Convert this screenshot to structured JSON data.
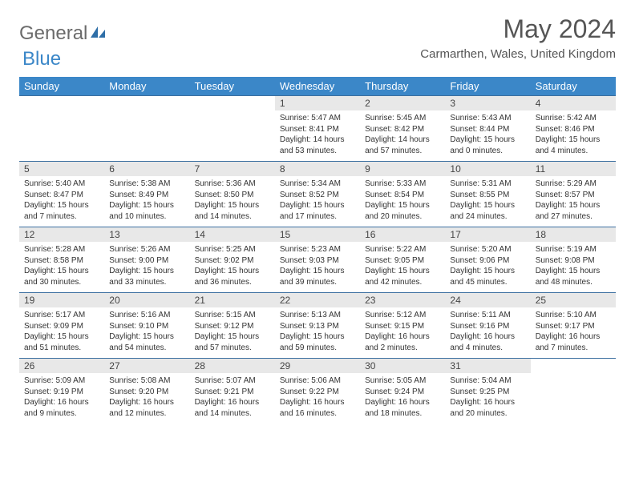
{
  "logo": {
    "word1": "General",
    "word2": "Blue"
  },
  "title": "May 2024",
  "location": "Carmarthen, Wales, United Kingdom",
  "colors": {
    "header_bg": "#3b87c8",
    "header_text": "#ffffff",
    "row_border": "#3b6fa0",
    "daynum_bg": "#e8e8e8",
    "logo_gray": "#6b6b6b",
    "logo_blue": "#3b87c8"
  },
  "layout": {
    "first_weekday_index": 3,
    "num_days": 31,
    "cols": 7
  },
  "weekdays": [
    "Sunday",
    "Monday",
    "Tuesday",
    "Wednesday",
    "Thursday",
    "Friday",
    "Saturday"
  ],
  "days": [
    {
      "n": 1,
      "sunrise": "5:47 AM",
      "sunset": "8:41 PM",
      "daylight": "14 hours and 53 minutes."
    },
    {
      "n": 2,
      "sunrise": "5:45 AM",
      "sunset": "8:42 PM",
      "daylight": "14 hours and 57 minutes."
    },
    {
      "n": 3,
      "sunrise": "5:43 AM",
      "sunset": "8:44 PM",
      "daylight": "15 hours and 0 minutes."
    },
    {
      "n": 4,
      "sunrise": "5:42 AM",
      "sunset": "8:46 PM",
      "daylight": "15 hours and 4 minutes."
    },
    {
      "n": 5,
      "sunrise": "5:40 AM",
      "sunset": "8:47 PM",
      "daylight": "15 hours and 7 minutes."
    },
    {
      "n": 6,
      "sunrise": "5:38 AM",
      "sunset": "8:49 PM",
      "daylight": "15 hours and 10 minutes."
    },
    {
      "n": 7,
      "sunrise": "5:36 AM",
      "sunset": "8:50 PM",
      "daylight": "15 hours and 14 minutes."
    },
    {
      "n": 8,
      "sunrise": "5:34 AM",
      "sunset": "8:52 PM",
      "daylight": "15 hours and 17 minutes."
    },
    {
      "n": 9,
      "sunrise": "5:33 AM",
      "sunset": "8:54 PM",
      "daylight": "15 hours and 20 minutes."
    },
    {
      "n": 10,
      "sunrise": "5:31 AM",
      "sunset": "8:55 PM",
      "daylight": "15 hours and 24 minutes."
    },
    {
      "n": 11,
      "sunrise": "5:29 AM",
      "sunset": "8:57 PM",
      "daylight": "15 hours and 27 minutes."
    },
    {
      "n": 12,
      "sunrise": "5:28 AM",
      "sunset": "8:58 PM",
      "daylight": "15 hours and 30 minutes."
    },
    {
      "n": 13,
      "sunrise": "5:26 AM",
      "sunset": "9:00 PM",
      "daylight": "15 hours and 33 minutes."
    },
    {
      "n": 14,
      "sunrise": "5:25 AM",
      "sunset": "9:02 PM",
      "daylight": "15 hours and 36 minutes."
    },
    {
      "n": 15,
      "sunrise": "5:23 AM",
      "sunset": "9:03 PM",
      "daylight": "15 hours and 39 minutes."
    },
    {
      "n": 16,
      "sunrise": "5:22 AM",
      "sunset": "9:05 PM",
      "daylight": "15 hours and 42 minutes."
    },
    {
      "n": 17,
      "sunrise": "5:20 AM",
      "sunset": "9:06 PM",
      "daylight": "15 hours and 45 minutes."
    },
    {
      "n": 18,
      "sunrise": "5:19 AM",
      "sunset": "9:08 PM",
      "daylight": "15 hours and 48 minutes."
    },
    {
      "n": 19,
      "sunrise": "5:17 AM",
      "sunset": "9:09 PM",
      "daylight": "15 hours and 51 minutes."
    },
    {
      "n": 20,
      "sunrise": "5:16 AM",
      "sunset": "9:10 PM",
      "daylight": "15 hours and 54 minutes."
    },
    {
      "n": 21,
      "sunrise": "5:15 AM",
      "sunset": "9:12 PM",
      "daylight": "15 hours and 57 minutes."
    },
    {
      "n": 22,
      "sunrise": "5:13 AM",
      "sunset": "9:13 PM",
      "daylight": "15 hours and 59 minutes."
    },
    {
      "n": 23,
      "sunrise": "5:12 AM",
      "sunset": "9:15 PM",
      "daylight": "16 hours and 2 minutes."
    },
    {
      "n": 24,
      "sunrise": "5:11 AM",
      "sunset": "9:16 PM",
      "daylight": "16 hours and 4 minutes."
    },
    {
      "n": 25,
      "sunrise": "5:10 AM",
      "sunset": "9:17 PM",
      "daylight": "16 hours and 7 minutes."
    },
    {
      "n": 26,
      "sunrise": "5:09 AM",
      "sunset": "9:19 PM",
      "daylight": "16 hours and 9 minutes."
    },
    {
      "n": 27,
      "sunrise": "5:08 AM",
      "sunset": "9:20 PM",
      "daylight": "16 hours and 12 minutes."
    },
    {
      "n": 28,
      "sunrise": "5:07 AM",
      "sunset": "9:21 PM",
      "daylight": "16 hours and 14 minutes."
    },
    {
      "n": 29,
      "sunrise": "5:06 AM",
      "sunset": "9:22 PM",
      "daylight": "16 hours and 16 minutes."
    },
    {
      "n": 30,
      "sunrise": "5:05 AM",
      "sunset": "9:24 PM",
      "daylight": "16 hours and 18 minutes."
    },
    {
      "n": 31,
      "sunrise": "5:04 AM",
      "sunset": "9:25 PM",
      "daylight": "16 hours and 20 minutes."
    }
  ],
  "labels": {
    "sunrise": "Sunrise: ",
    "sunset": "Sunset: ",
    "daylight": "Daylight: "
  }
}
